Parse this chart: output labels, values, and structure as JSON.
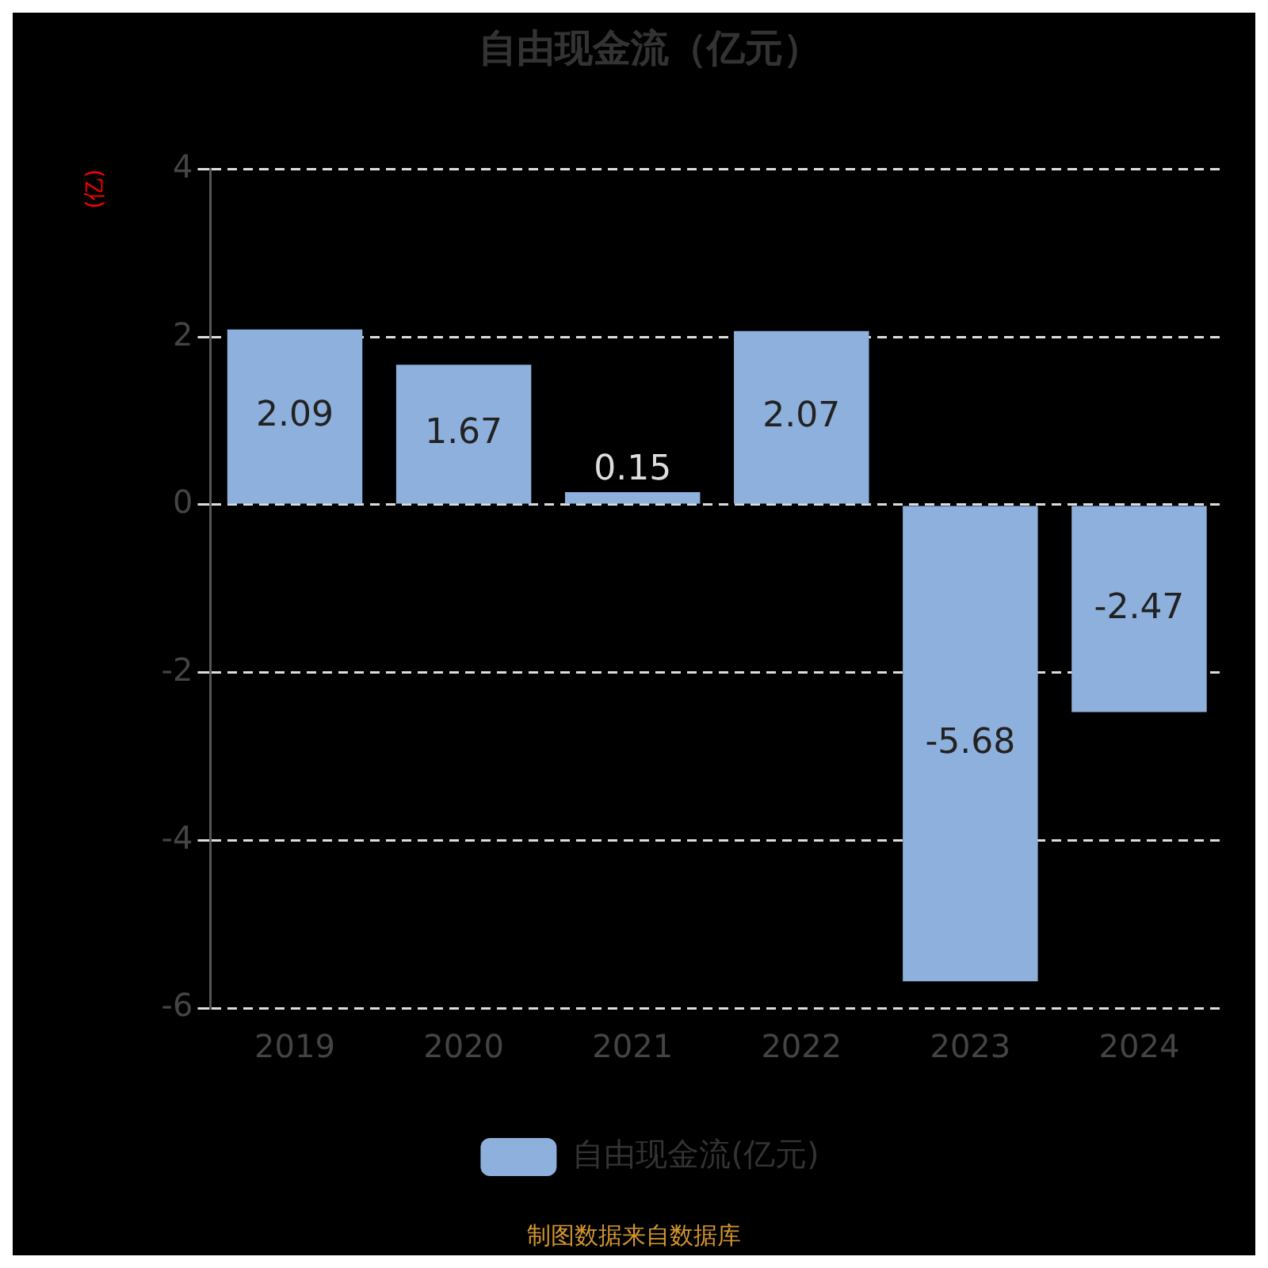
{
  "chart_data": {
    "type": "bar",
    "title": "自由现金流（亿元）",
    "ylabel": "(亿)",
    "categories": [
      "2019",
      "2020",
      "2021",
      "2022",
      "2023",
      "2024"
    ],
    "series": [
      {
        "name": "自由现金流(亿元)",
        "color": "#8eb0dc",
        "values": [
          2.09,
          1.67,
          0.15,
          2.07,
          -5.68,
          -2.47
        ]
      }
    ],
    "ylim": [
      -6,
      4
    ],
    "yticks": [
      -6,
      -4,
      -2,
      0,
      2,
      4
    ],
    "grid": "y",
    "legend": "bottom",
    "data_labels": true,
    "annotations": [
      "制图数据来自数据库"
    ]
  }
}
